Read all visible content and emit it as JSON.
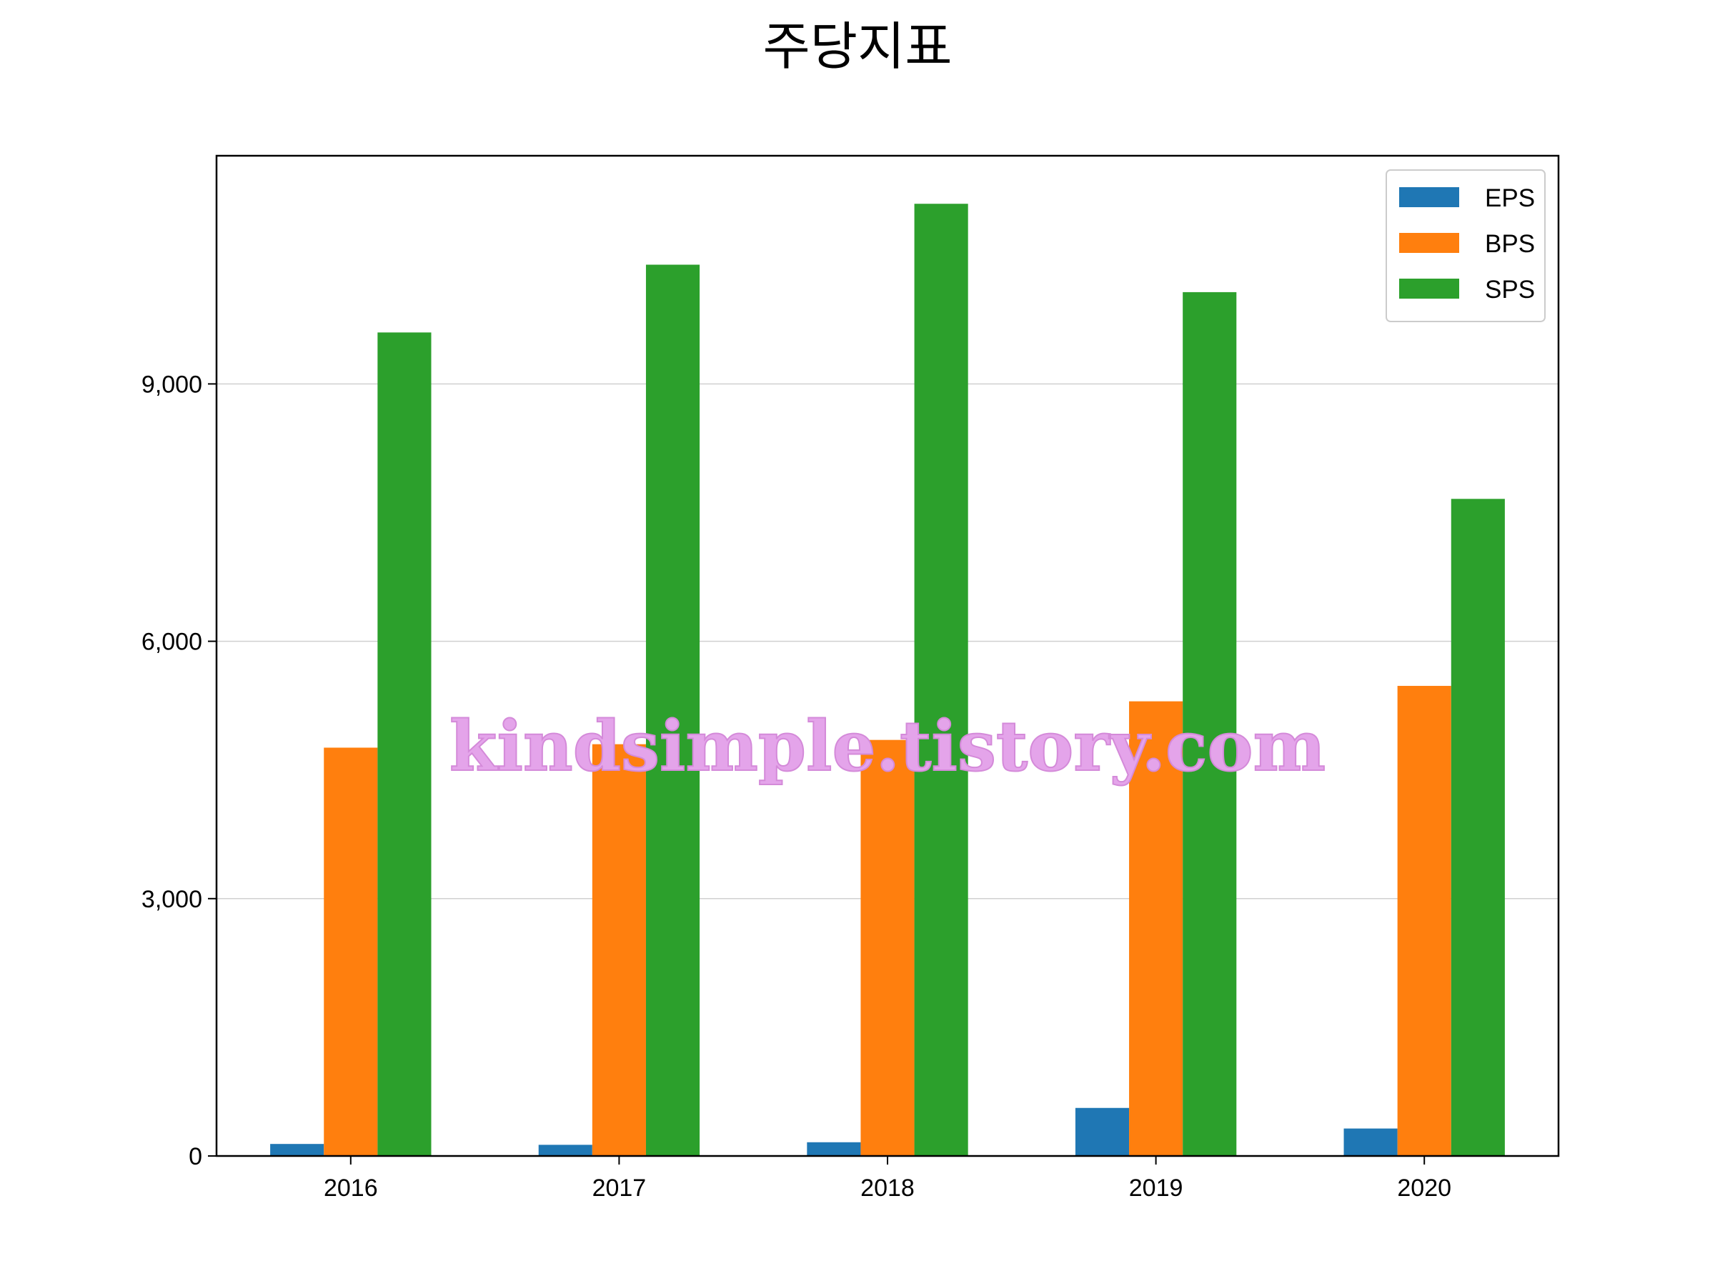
{
  "chart_data": {
    "type": "bar",
    "title": "주당지표",
    "xlabel": "",
    "ylabel": "",
    "categories": [
      "2016",
      "2017",
      "2018",
      "2019",
      "2020"
    ],
    "series": [
      {
        "name": "EPS",
        "color": "#1f77b4",
        "values": [
          140,
          130,
          160,
          560,
          320
        ]
      },
      {
        "name": "BPS",
        "color": "#ff7f0e",
        "values": [
          4760,
          4800,
          4850,
          5300,
          5480
        ]
      },
      {
        "name": "SPS",
        "color": "#2ca02c",
        "values": [
          9600,
          10390,
          11100,
          10070,
          7660
        ]
      }
    ],
    "ylim": [
      0,
      11660
    ],
    "yticks": [
      0,
      3000,
      6000,
      9000
    ],
    "ytick_labels": [
      "0",
      "3,000",
      "6,000",
      "9,000"
    ],
    "grid": "horizontal",
    "legend_position": "top-right",
    "watermark": "kindsimple.tistory.com"
  }
}
